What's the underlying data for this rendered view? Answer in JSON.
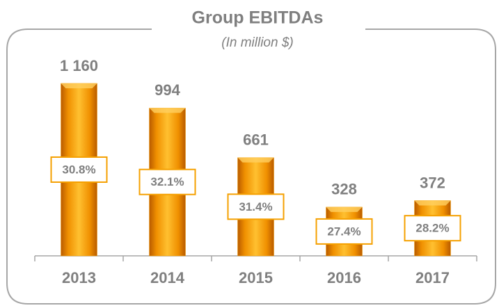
{
  "chart_data": {
    "type": "bar",
    "title": "Group EBITDAs",
    "subtitle": "(In million $)",
    "categories": [
      "2013",
      "2014",
      "2015",
      "2016",
      "2017"
    ],
    "values": [
      1160,
      994,
      661,
      328,
      372
    ],
    "value_labels": [
      "1 160",
      "994",
      "661",
      "328",
      "372"
    ],
    "color": "#f5a000",
    "ylim": [
      0,
      1300
    ],
    "margins": {
      "values": [
        30.8,
        32.1,
        31.4,
        27.4,
        28.2
      ],
      "labels": [
        "30.8%",
        "32.1%",
        "31.4%",
        "27.4%",
        "28.2%"
      ]
    }
  }
}
